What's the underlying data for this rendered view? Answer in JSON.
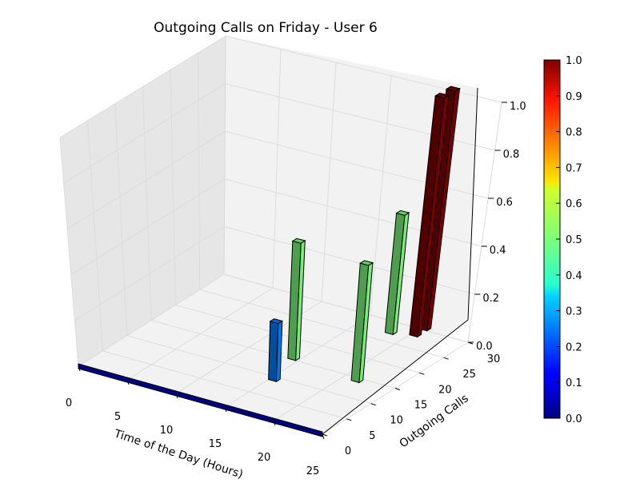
{
  "chart_data": {
    "type": "bar",
    "subtype": "3d-bar",
    "title": "Outgoing Calls on Friday - User 6",
    "xlabel": "Time of the Day (Hours)",
    "ylabel": "Outgoing Calls",
    "zlabel": "",
    "xlim": [
      0,
      25
    ],
    "ylim": [
      0,
      30
    ],
    "zlim": [
      0,
      1.0
    ],
    "x_ticks": [
      "0",
      "5",
      "10",
      "15",
      "20",
      "25"
    ],
    "y_ticks": [
      "0",
      "5",
      "10",
      "15",
      "20",
      "25",
      "30"
    ],
    "z_ticks": [
      "0.0",
      "0.2",
      "0.4",
      "0.6",
      "0.8",
      "1.0"
    ],
    "grid": true,
    "colormap": "jet",
    "colorbar": {
      "range": [
        0,
        1.0
      ],
      "ticks": [
        "0.0",
        "0.1",
        "0.2",
        "0.3",
        "0.4",
        "0.5",
        "0.6",
        "0.7",
        "0.8",
        "0.9",
        "1.0"
      ]
    },
    "bars": [
      {
        "x": 14,
        "y": 15,
        "z": 0.5
      },
      {
        "x": 15,
        "y": 9,
        "z": 0.25
      },
      {
        "x": 21,
        "y": 14,
        "z": 0.5
      },
      {
        "x": 18,
        "y": 27,
        "z": 0.5
      },
      {
        "x": 20,
        "y": 30,
        "z": 1.0
      },
      {
        "x": 20,
        "y": 28,
        "z": 1.0
      }
    ],
    "baseline": {
      "x_start": 0,
      "x_end": 25,
      "y": 0,
      "z": 0
    }
  },
  "colors": {
    "pane": "#f2f2f2",
    "pane_side": "#e6e6e6",
    "grid": "#dcdcdc",
    "edge": "#000000"
  }
}
